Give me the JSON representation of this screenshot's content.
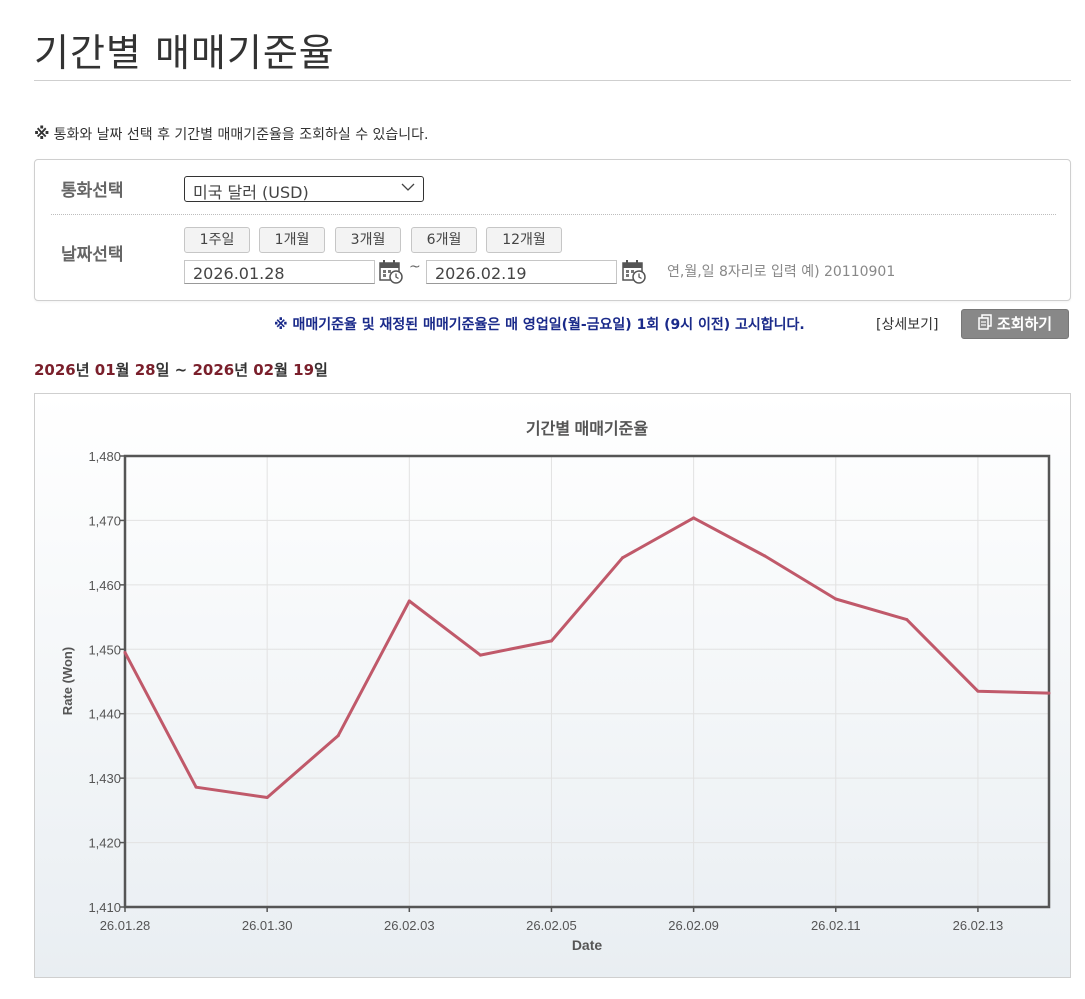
{
  "page": {
    "title": "기간별 매매기준율",
    "notice_mark": "※",
    "notice": "통화와 날짜 선택 후 기간별 매매기준율을 조회하실 수 있습니다."
  },
  "form": {
    "currency_label": "통화선택",
    "currency_value": "미국 달러 (USD)",
    "date_label": "날짜선택",
    "period_buttons": [
      "1주일",
      "1개월",
      "3개월",
      "6개월",
      "12개월"
    ],
    "start_date": "2026.01.28",
    "date_separator": "~",
    "end_date": "2026.02.19",
    "hint": "연,월,일 8자리로 입력 예) 20110901"
  },
  "rule_note": "※ 매매기준율 및 재정된 매매기준율은 매 영업일(월-금요일) 1회 (9시 이전) 고시합니다.",
  "detail_link": "[상세보기]",
  "query_button": "조회하기",
  "period": {
    "start_year": "2026",
    "start_month": "01",
    "start_day": "28",
    "end_year": "2026",
    "end_month": "02",
    "end_day": "19",
    "unit_year": "년",
    "unit_month": "월",
    "unit_day": "일",
    "separator": "~"
  },
  "colors": {
    "line": "#c0596a",
    "period_num": "#7a1f2b",
    "notice_blue": "#1a2a8a",
    "query_button": "#888888"
  },
  "chart_data": {
    "type": "line",
    "title": "기간별 매매기준율",
    "xlabel": "Date",
    "ylabel": "Rate (Won)",
    "ylim": [
      1410,
      1480
    ],
    "yticks": [
      1410,
      1420,
      1430,
      1440,
      1450,
      1460,
      1470,
      1480
    ],
    "ytick_labels": [
      "1,410",
      "1,420",
      "1,430",
      "1,440",
      "1,450",
      "1,460",
      "1,470",
      "1,480"
    ],
    "xtick_labels": [
      "26.01.28",
      "26.01.30",
      "26.02.03",
      "26.02.05",
      "26.02.09",
      "26.02.11",
      "26.02.13"
    ],
    "xtick_positions": [
      0,
      2,
      4,
      6,
      8,
      10,
      12
    ],
    "x": [
      "26.01.28",
      "26.01.29",
      "26.01.30",
      "26.02.02",
      "26.02.03",
      "26.02.04",
      "26.02.05",
      "26.02.06",
      "26.02.09",
      "26.02.10",
      "26.02.11",
      "26.02.12",
      "26.02.13",
      "26.02.19"
    ],
    "values": [
      1449.5,
      1428.6,
      1427.0,
      1436.6,
      1457.5,
      1449.1,
      1451.3,
      1464.2,
      1470.4,
      1464.5,
      1457.8,
      1454.6,
      1443.5,
      1443.2
    ],
    "grid": true,
    "legend": "none"
  }
}
